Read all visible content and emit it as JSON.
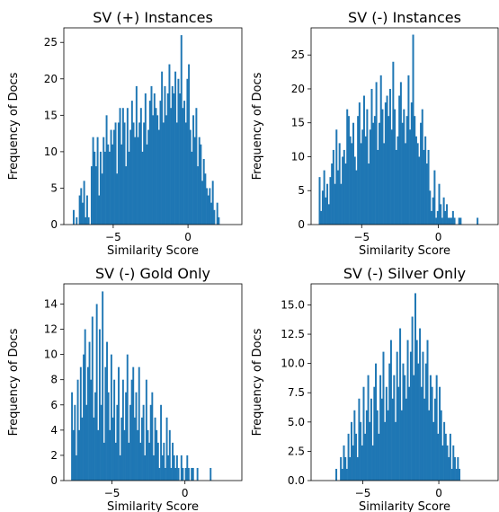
{
  "figure": {
    "bar_color": "#1f77b4"
  },
  "chart_data": [
    {
      "type": "bar",
      "title": "SV (+) Instances",
      "xlabel": "Similarity Score",
      "ylabel": "Frequency of Docs",
      "xlim": [
        -8.3,
        3.6
      ],
      "ylim": [
        0,
        27
      ],
      "xticks": [
        -5,
        0
      ],
      "xtick_labels": [
        "−5",
        "0"
      ],
      "yticks": [
        0,
        5,
        10,
        15,
        20,
        25
      ],
      "ytick_labels": [
        "0",
        "5",
        "10",
        "15",
        "20",
        "25"
      ],
      "bin_start": -7.7,
      "bin_width": 0.1,
      "values": [
        2,
        0,
        1,
        0,
        4,
        5,
        3,
        6,
        1,
        4,
        1,
        0,
        8,
        12,
        10,
        8,
        12,
        4,
        10,
        7,
        12,
        10,
        15,
        11,
        10,
        13,
        11,
        13,
        14,
        7,
        14,
        16,
        11,
        16,
        14,
        8,
        16,
        10,
        13,
        17,
        14,
        12,
        19,
        12,
        14,
        16,
        10,
        14,
        18,
        11,
        13,
        17,
        19,
        15,
        18,
        16,
        15,
        13,
        17,
        21,
        14,
        19,
        15,
        18,
        22,
        16,
        19,
        18,
        21,
        14,
        20,
        18,
        26,
        16,
        17,
        14,
        20,
        22,
        13,
        10,
        15,
        12,
        16,
        8,
        12,
        11,
        6,
        9,
        7,
        5,
        4,
        5,
        3,
        6,
        2,
        0,
        3,
        1
      ],
      "grid": false
    },
    {
      "type": "bar",
      "title": "SV (-) Instances",
      "xlabel": "Similarity Score",
      "ylabel": "Frequency of Docs",
      "xlim": [
        -8.3,
        3.9
      ],
      "ylim": [
        0,
        29
      ],
      "xticks": [
        -5,
        0
      ],
      "xtick_labels": [
        "−5",
        "0"
      ],
      "yticks": [
        0,
        5,
        10,
        15,
        20,
        25
      ],
      "ytick_labels": [
        "0",
        "5",
        "10",
        "15",
        "20",
        "25"
      ],
      "bin_start": -7.8,
      "bin_width": 0.1,
      "values": [
        7,
        2,
        5,
        8,
        4,
        6,
        3,
        7,
        9,
        11,
        6,
        14,
        8,
        12,
        6,
        10,
        11,
        9,
        17,
        16,
        13,
        12,
        15,
        10,
        8,
        16,
        18,
        12,
        14,
        19,
        13,
        17,
        9,
        14,
        20,
        15,
        16,
        21,
        11,
        15,
        22,
        17,
        12,
        18,
        19,
        16,
        20,
        14,
        24,
        17,
        11,
        13,
        19,
        21,
        15,
        17,
        12,
        16,
        22,
        14,
        18,
        28,
        16,
        13,
        12,
        10,
        15,
        17,
        11,
        13,
        9,
        11,
        5,
        2,
        4,
        8,
        1,
        2,
        6,
        3,
        1,
        4,
        2,
        3,
        1,
        1,
        1,
        2,
        1,
        0,
        0,
        1,
        1,
        0,
        0,
        0,
        0,
        0,
        0,
        0,
        0,
        0,
        0,
        1
      ],
      "grid": false
    },
    {
      "type": "bar",
      "title": "SV (-) Gold Only",
      "xlabel": "Similarity Score",
      "ylabel": "Frequency of Docs",
      "xlim": [
        -8.3,
        3.9
      ],
      "ylim": [
        0,
        15.6
      ],
      "xticks": [
        -5,
        0
      ],
      "xtick_labels": [
        "−5",
        "0"
      ],
      "yticks": [
        0,
        2,
        4,
        6,
        8,
        10,
        12,
        14
      ],
      "ytick_labels": [
        "0",
        "2",
        "4",
        "6",
        "8",
        "10",
        "12",
        "14"
      ],
      "bin_start": -7.8,
      "bin_width": 0.1,
      "values": [
        7,
        4,
        6,
        2,
        8,
        4,
        9,
        5,
        10,
        12,
        6,
        9,
        11,
        8,
        13,
        5,
        7,
        14,
        4,
        12,
        6,
        15,
        3,
        9,
        11,
        7,
        4,
        10,
        5,
        8,
        3,
        6,
        9,
        2,
        5,
        8,
        4,
        7,
        10,
        3,
        6,
        8,
        9,
        5,
        7,
        4,
        9,
        3,
        5,
        6,
        2,
        8,
        4,
        3,
        6,
        7,
        2,
        5,
        4,
        3,
        1,
        6,
        2,
        3,
        1,
        5,
        2,
        4,
        1,
        3,
        2,
        1,
        2,
        1,
        0,
        2,
        1,
        0,
        1,
        2,
        1,
        0,
        1,
        1,
        0,
        0,
        1,
        0,
        0,
        0,
        0,
        0,
        0,
        0,
        0,
        1
      ],
      "grid": false
    },
    {
      "type": "bar",
      "title": "SV (-) Silver Only",
      "xlabel": "Similarity Score",
      "ylabel": "Frequency of Docs",
      "xlim": [
        -8.4,
        3.9
      ],
      "ylim": [
        0,
        16.8
      ],
      "xticks": [
        -5,
        0
      ],
      "xtick_labels": [
        "−5",
        "0"
      ],
      "yticks": [
        0,
        2.5,
        5,
        7.5,
        10,
        12.5,
        15
      ],
      "ytick_labels": [
        "0.0",
        "2.5",
        "5.0",
        "7.5",
        "10.0",
        "12.5",
        "15.0"
      ],
      "bin_start": -6.8,
      "bin_width": 0.1,
      "values": [
        1,
        0,
        0,
        2,
        1,
        3,
        2,
        1,
        4,
        2,
        5,
        3,
        6,
        4,
        2,
        7,
        5,
        3,
        8,
        4,
        6,
        9,
        5,
        7,
        3,
        8,
        10,
        6,
        4,
        9,
        7,
        11,
        5,
        8,
        6,
        10,
        12,
        7,
        9,
        5,
        11,
        8,
        13,
        6,
        10,
        9,
        7,
        12,
        8,
        11,
        14,
        9,
        16,
        12,
        10,
        13,
        8,
        11,
        7,
        10,
        12,
        6,
        9,
        8,
        5,
        7,
        9,
        4,
        8,
        6,
        3,
        5,
        4,
        3,
        2,
        4,
        1,
        3,
        2,
        1,
        2,
        1
      ],
      "grid": false
    }
  ]
}
